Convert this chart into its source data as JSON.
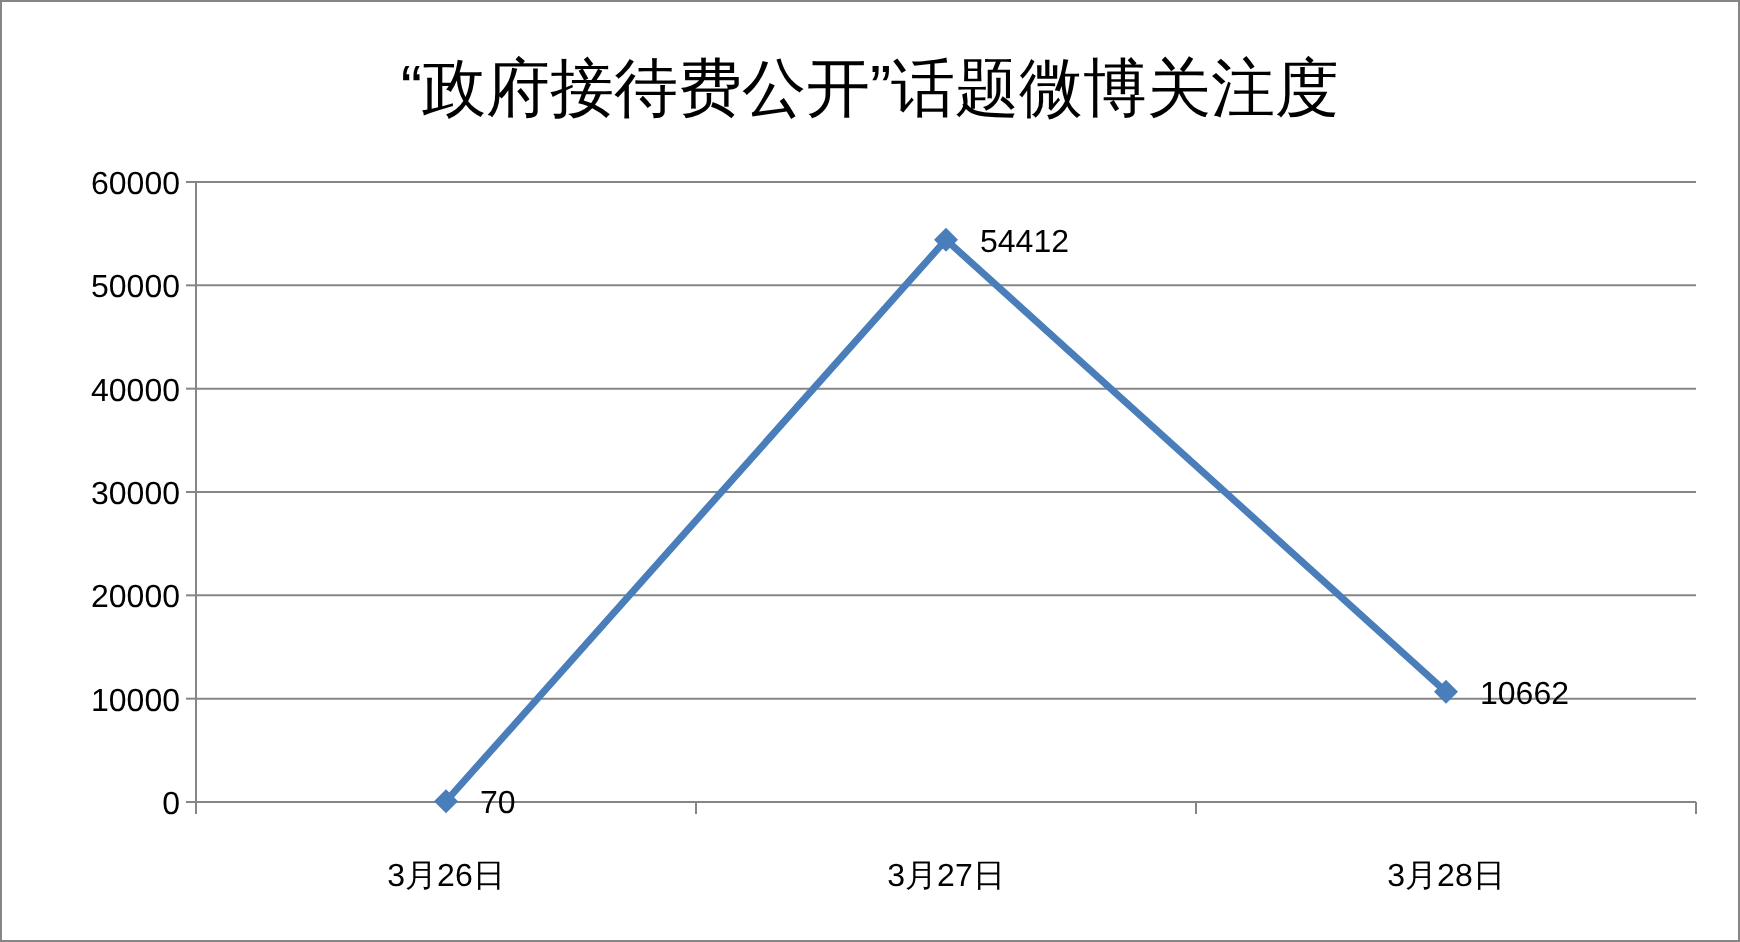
{
  "chart_data": {
    "type": "line",
    "title": "“政府接待费公开”话题微博关注度",
    "categories": [
      "3月26日",
      "3月27日",
      "3月28日"
    ],
    "values": [
      70,
      54412,
      10662
    ],
    "color": "#4a7ebb",
    "ylim": [
      0,
      60000
    ],
    "yticks": [
      0,
      10000,
      20000,
      30000,
      40000,
      50000,
      60000
    ],
    "grid": "y",
    "marker": "diamond",
    "line_style": "solid",
    "data_labels": true
  }
}
